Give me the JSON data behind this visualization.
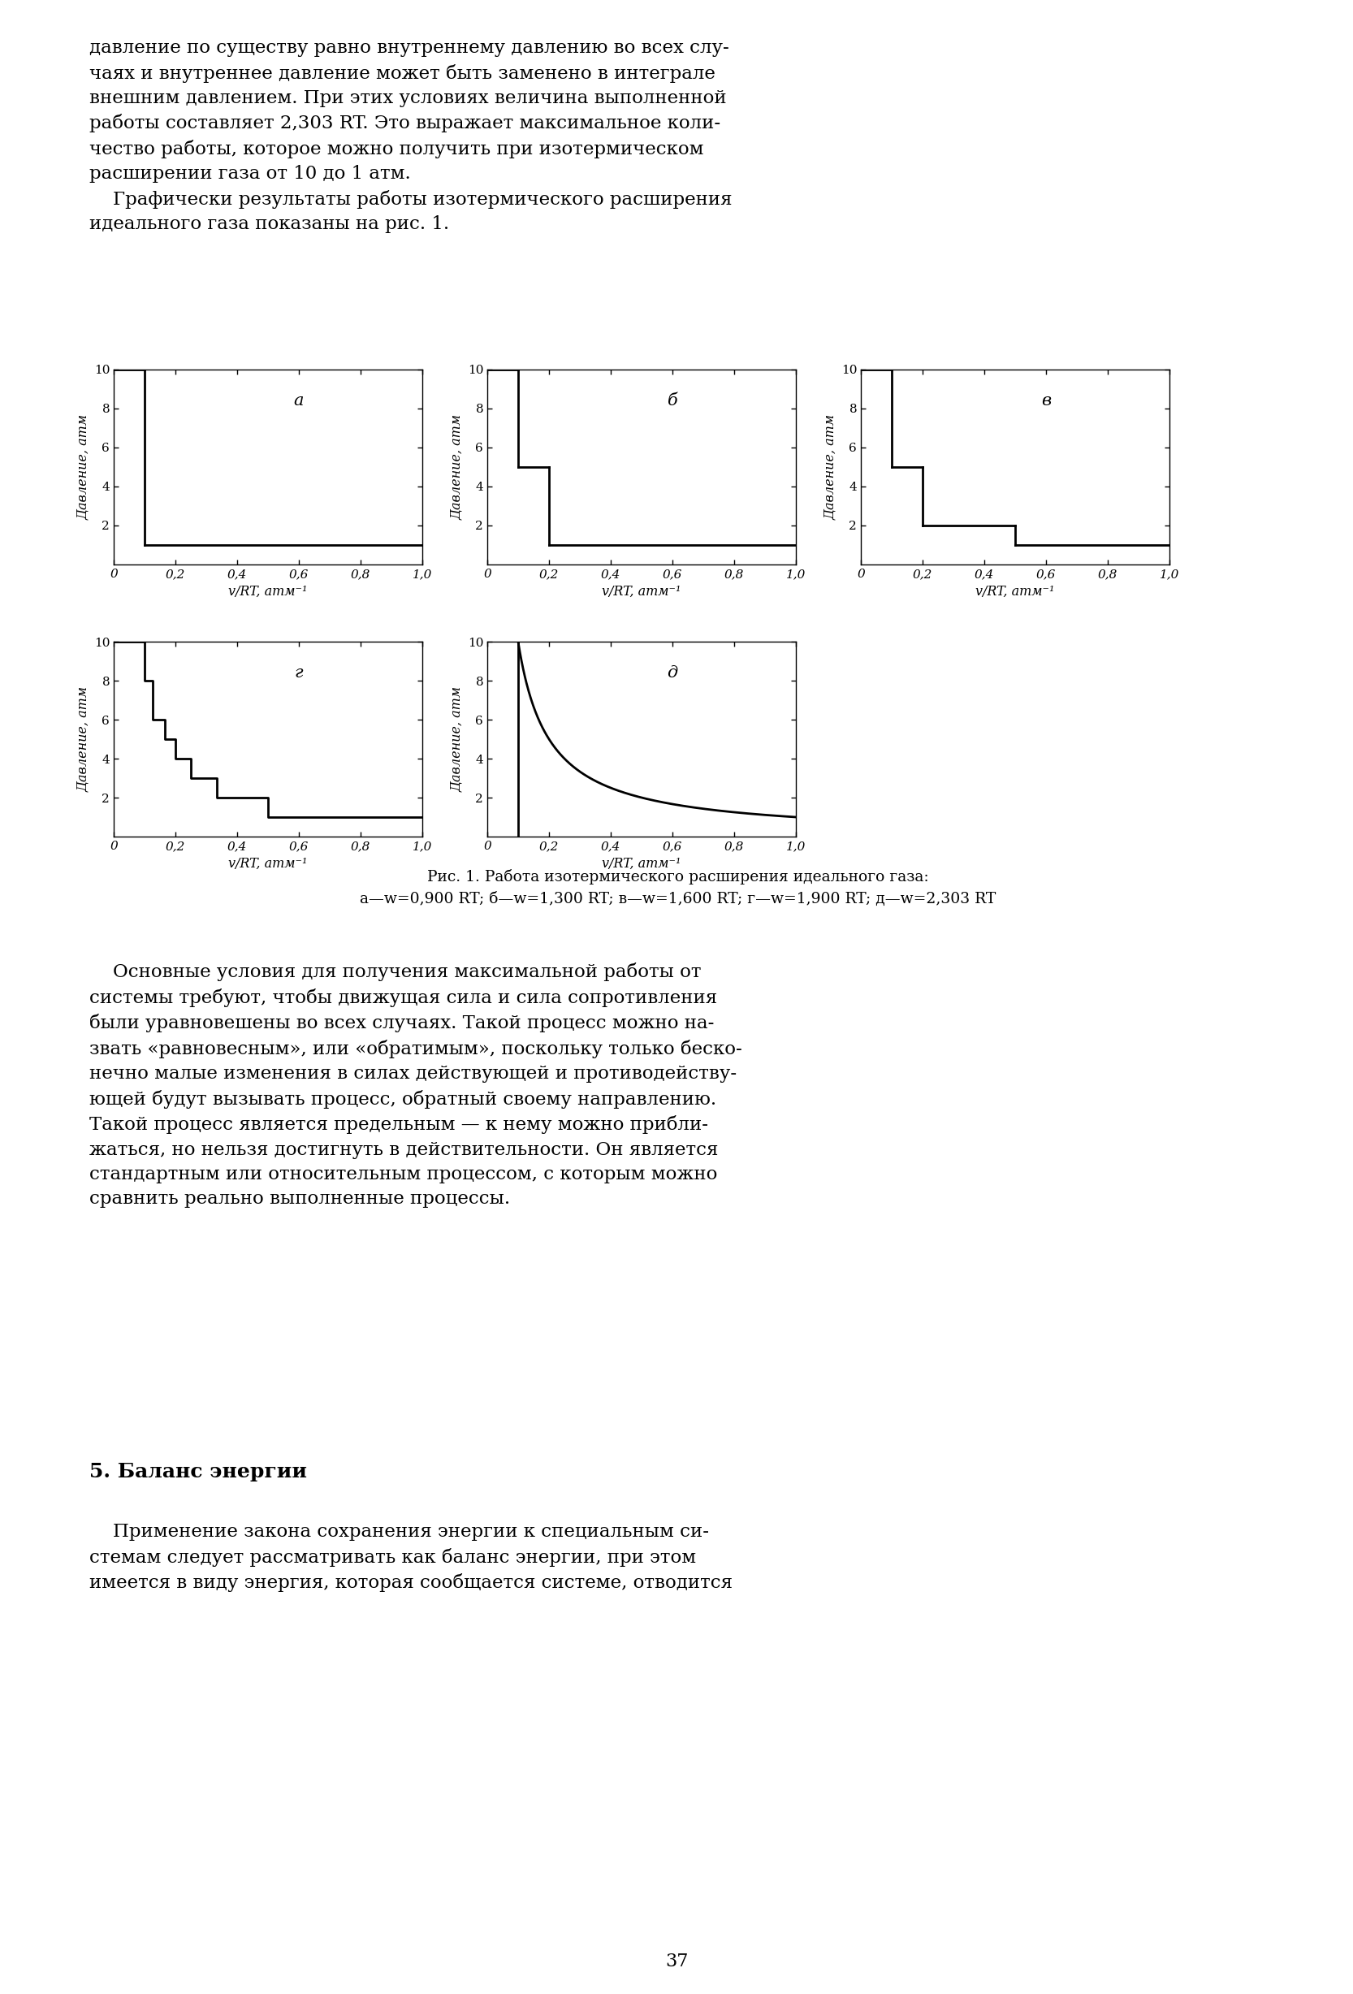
{
  "page_bg": "#ffffff",
  "top_text_line1": "давление по существу равно внутреннему давлению во всех слу-",
  "top_text_line2": "чаях и внутреннее давление может быть заменено в интеграле",
  "top_text_line3": "внешним давлением. При этих условиях величина выполненной",
  "top_text_line4": "работы составляет 2,303 RT. Это выражает максимальное коли-",
  "top_text_line5": "чество работы, которое можно получить при изотермическом",
  "top_text_line6": "расширении газа от 10 до 1 атм.",
  "top_text_line7": "    Графически результаты работы изотермического расширения",
  "top_text_line8": "идеального газа показаны на рис. 1.",
  "fig_caption_line1": "Рис. 1. Работа изотермического расширения идеального газа:",
  "fig_caption_line2": "а—w=0,900 RT; б—w=1,300 RT; в—w=1,600 RT; г—w=1,900 RT; д—w=2,303 RT",
  "bottom_text_line1": "    Основные условия для получения максимальной работы от",
  "bottom_text_line2": "системы требуют, чтобы движущая сила и сила сопротивления",
  "bottom_text_line3": "были уравновешены во всех случаях. Такой процесс можно на-",
  "bottom_text_line4": "звать «равновесным», или «обратимым», поскольку только беско-",
  "bottom_text_line5": "нечно малые изменения в силах действующей и противодейству-",
  "bottom_text_line6": "ющей будут вызывать процесс, обратный своему направлению.",
  "bottom_text_line7": "Такой процесс является предельным — к нему можно прибли-",
  "bottom_text_line8": "жаться, но нельзя достигнуть в действительности. Он является",
  "bottom_text_line9": "стандартным или относительным процессом, с которым можно",
  "bottom_text_line10": "сравнить реально выполненные процессы.",
  "section_title": "5. Баланс энергии",
  "last_text_line1": "    Применение закона сохранения энергии к специальным си-",
  "last_text_line2": "стемам следует рассматривать как баланс энергии, при этом",
  "last_text_line3": "имеется в виду энергия, которая сообщается системе, отводится",
  "page_number": "37",
  "ylim": [
    0,
    10
  ],
  "xlim": [
    0,
    1.0
  ],
  "xtick_labels": [
    "0",
    "0,2",
    "0,4",
    "0,6",
    "0,8",
    "1,0"
  ],
  "xtick_vals": [
    0,
    0.2,
    0.4,
    0.6,
    0.8,
    1.0
  ],
  "ytick_vals": [
    2,
    4,
    6,
    8,
    10
  ],
  "ytick_labels": [
    "2",
    "4",
    "6",
    "8",
    "10"
  ],
  "ylabel_text": "Давление, атм",
  "xlabel_text": "v/RT, атм⁻¹",
  "subplot_labels": [
    "а",
    "б",
    "в",
    "г",
    "д"
  ]
}
